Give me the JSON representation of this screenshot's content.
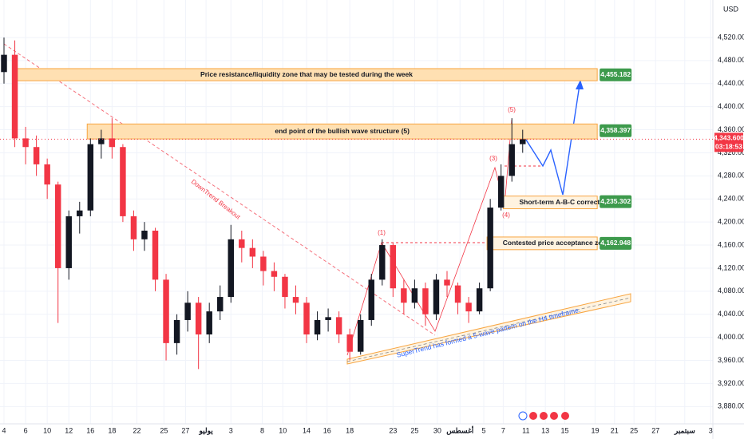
{
  "currency": "USD",
  "annotations": {
    "downtrend": "DownTrend Breakout",
    "supertrend": "SuperTrend has formed a 5-wave pattern on the H4 timeframe.",
    "w1": "(1)",
    "w3": "(3)",
    "w4": "(4)",
    "w5": "(5)"
  },
  "chart_data": {
    "type": "candlestick",
    "x": [
      0,
      1,
      2,
      3,
      4,
      5,
      6,
      7,
      8,
      9,
      10,
      11,
      12,
      13,
      14,
      15,
      16,
      17,
      18,
      19,
      20,
      21,
      22,
      23,
      24,
      25,
      26,
      27,
      28,
      29,
      30,
      31,
      32,
      33,
      34,
      35,
      36,
      37,
      38,
      39,
      40,
      41,
      42,
      43,
      44,
      45,
      46,
      47,
      48
    ],
    "open": [
      4460,
      4490,
      4345,
      4330,
      4300,
      4265,
      4120,
      4210,
      4220,
      4335,
      4345,
      4330,
      4210,
      4170,
      4185,
      4100,
      3990,
      4030,
      4060,
      4005,
      4045,
      4070,
      4170,
      4155,
      4140,
      4115,
      4105,
      4070,
      4060,
      4005,
      4030,
      4035,
      4005,
      3975,
      4030,
      4100,
      4160,
      4085,
      4060,
      4085,
      4040,
      4100,
      4090,
      4060,
      4045,
      4085,
      4225,
      4280,
      4335
    ],
    "high": [
      4520,
      4515,
      4365,
      4350,
      4310,
      4270,
      4220,
      4235,
      4345,
      4360,
      4380,
      4335,
      4220,
      4200,
      4190,
      4110,
      4040,
      4080,
      4070,
      4060,
      4090,
      4195,
      4185,
      4170,
      4150,
      4130,
      4110,
      4090,
      4070,
      4045,
      4050,
      4045,
      4015,
      4040,
      4110,
      4170,
      4165,
      4100,
      4100,
      4095,
      4110,
      4115,
      4095,
      4070,
      4095,
      4240,
      4300,
      4380,
      4360
    ],
    "low": [
      4440,
      4330,
      4300,
      4280,
      4240,
      4025,
      4100,
      4180,
      4210,
      4310,
      4310,
      4200,
      4150,
      4150,
      4080,
      3960,
      3970,
      4010,
      3945,
      3990,
      4030,
      4060,
      4130,
      4120,
      4090,
      4080,
      4050,
      4040,
      3990,
      3995,
      4010,
      3990,
      3960,
      3970,
      4020,
      4090,
      4070,
      4040,
      4050,
      4020,
      4030,
      4070,
      4040,
      4025,
      4040,
      4080,
      4220,
      4270,
      4320
    ],
    "close": [
      4490,
      4345,
      4330,
      4300,
      4265,
      4120,
      4210,
      4220,
      4335,
      4345,
      4330,
      4210,
      4170,
      4185,
      4100,
      3990,
      4030,
      4060,
      4005,
      4045,
      4070,
      4170,
      4155,
      4140,
      4115,
      4105,
      4070,
      4060,
      4005,
      4030,
      4035,
      4005,
      3975,
      4030,
      4100,
      4160,
      4085,
      4060,
      4085,
      4040,
      4100,
      4090,
      4060,
      4045,
      4085,
      4225,
      4280,
      4335,
      4343.6
    ],
    "up_color": "#131722",
    "down_color": "#f23645",
    "xlim": [
      -0.37,
      65.6
    ],
    "xticks": [
      {
        "value": 0,
        "label": "4"
      },
      {
        "value": 2,
        "label": "6"
      },
      {
        "value": 4,
        "label": "10"
      },
      {
        "value": 6,
        "label": "12"
      },
      {
        "value": 8,
        "label": "16"
      },
      {
        "value": 10,
        "label": "18"
      },
      {
        "value": 12.3,
        "label": "22"
      },
      {
        "value": 14.8,
        "label": "25"
      },
      {
        "value": 16.8,
        "label": "27"
      },
      {
        "value": 18.7,
        "label": "يوليو"
      },
      {
        "value": 21,
        "label": "3"
      },
      {
        "value": 23.9,
        "label": "8"
      },
      {
        "value": 25.8,
        "label": "10"
      },
      {
        "value": 28,
        "label": "14"
      },
      {
        "value": 29.9,
        "label": "16"
      },
      {
        "value": 32,
        "label": "18"
      },
      {
        "value": 36,
        "label": "23"
      },
      {
        "value": 38,
        "label": "25"
      },
      {
        "value": 40.1,
        "label": "30"
      },
      {
        "value": 42.2,
        "label": "أغسطس"
      },
      {
        "value": 44.4,
        "label": "5"
      },
      {
        "value": 46.2,
        "label": "7"
      },
      {
        "value": 48.3,
        "label": "11"
      },
      {
        "value": 50.1,
        "label": "13"
      },
      {
        "value": 51.9,
        "label": "15"
      },
      {
        "value": 54.7,
        "label": "19"
      },
      {
        "value": 56.5,
        "label": "21"
      },
      {
        "value": 58.3,
        "label": "25"
      },
      {
        "value": 60.3,
        "label": "27"
      },
      {
        "value": 63,
        "label": "سبتمبر"
      },
      {
        "value": 65.4,
        "label": "3"
      }
    ],
    "ylim": [
      3850,
      4585
    ],
    "yticks": [
      {
        "value": 3880,
        "label": "3,880.000"
      },
      {
        "value": 3920,
        "label": "3,920.000"
      },
      {
        "value": 3960,
        "label": "3,960.000"
      },
      {
        "value": 4000,
        "label": "4,000.000"
      },
      {
        "value": 4040,
        "label": "4,040.000"
      },
      {
        "value": 4080,
        "label": "4,080.000"
      },
      {
        "value": 4120,
        "label": "4,120.000"
      },
      {
        "value": 4160,
        "label": "4,160.000"
      },
      {
        "value": 4200,
        "label": "4,200.000"
      },
      {
        "value": 4240,
        "label": "4,240.000"
      },
      {
        "value": 4280,
        "label": "4,280.000"
      },
      {
        "value": 4320,
        "label": "4,320.000"
      },
      {
        "value": 4360,
        "label": "4,360.000"
      },
      {
        "value": 4400,
        "label": "4,400.000"
      },
      {
        "value": 4440,
        "label": "4,440.000"
      },
      {
        "value": 4480,
        "label": "4,480.000"
      },
      {
        "value": 4520,
        "label": "4,520.000"
      }
    ],
    "last_price": 4343.6,
    "last_price_label": "4,343.600",
    "countdown": "03:18:53",
    "zones": [
      {
        "text": "Price resistance/liquidity zone that may be tested during the week",
        "low": 4445,
        "high": 4466,
        "x": [
          1.1,
          54.9
        ],
        "price": 4455.182,
        "price_label": "4,455.182",
        "fill": "#ffe0b2"
      },
      {
        "text": "end point of the bullish wave structure (5)",
        "low": 4344,
        "high": 4370,
        "x": [
          7.7,
          54.9
        ],
        "price": 4358.397,
        "price_label": "4,358.397",
        "fill": "#ffe0b2"
      },
      {
        "text": "Short-term A-B-C correction",
        "low": 4223,
        "high": 4245,
        "x": [
          46.2,
          54.9
        ],
        "price": 4235.302,
        "price_label": "4,235.302",
        "fill": "#fff3e0"
      },
      {
        "text": "Contested price acceptance zone",
        "low": 4152,
        "high": 4174,
        "x": [
          44.7,
          54.9
        ],
        "price": 4162.948,
        "price_label": "4,162.948",
        "fill": "#fff3e0"
      }
    ],
    "tag_color": "#3d9a4c",
    "last_color": "#f23645"
  }
}
